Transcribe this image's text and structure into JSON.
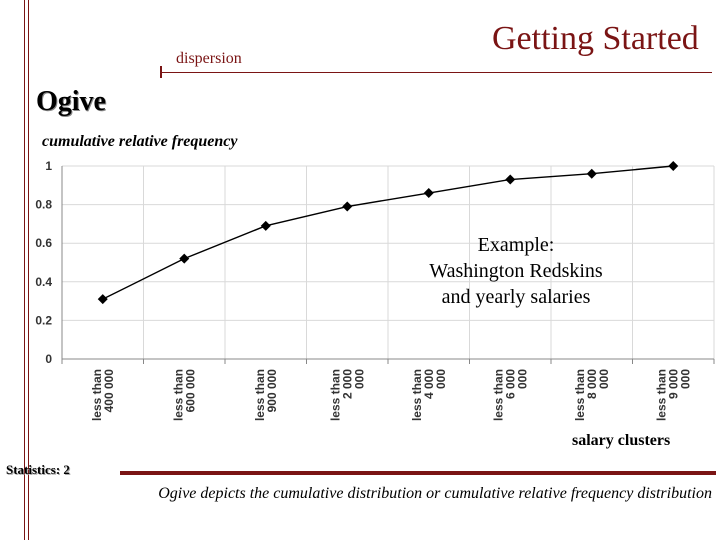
{
  "slide": {
    "header": "Getting Started",
    "section": "dispersion",
    "title": "Ogive",
    "example_lines": [
      "Example:",
      "Washington Redskins",
      "and yearly salaries"
    ],
    "footer_label": "Statistics: 2",
    "caption": "Ogive depicts the cumulative distribution or cumulative relative frequency distribution"
  },
  "colors": {
    "accent": "#7a1414",
    "line": "#000000",
    "grid": "#d9d9d9"
  },
  "chart_data": {
    "type": "line",
    "ylabel": "cumulative relative frequency",
    "xlabel": "salary clusters",
    "ylim": [
      0,
      1
    ],
    "yticks": [
      "0",
      "0.2",
      "0.4",
      "0.6",
      "0.8",
      "1"
    ],
    "grid": true,
    "marker": "diamond",
    "categories": [
      [
        "less than",
        "400 000"
      ],
      [
        "less than",
        "600 000"
      ],
      [
        "less than",
        "900 000"
      ],
      [
        "less than",
        "2 000",
        "000"
      ],
      [
        "less than",
        "4 000",
        "000"
      ],
      [
        "less than",
        "6 000",
        "000"
      ],
      [
        "less than",
        "8 000",
        "000"
      ],
      [
        "less than",
        "9 000",
        "000"
      ]
    ],
    "series": [
      {
        "values": [
          0.31,
          0.52,
          0.69,
          0.79,
          0.86,
          0.93,
          0.96,
          1.0
        ]
      }
    ]
  }
}
